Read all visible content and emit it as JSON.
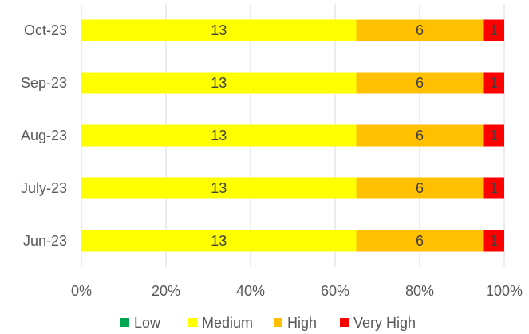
{
  "chart_data": {
    "type": "bar",
    "orientation": "horizontal",
    "stacked": true,
    "percent_stacked": true,
    "title": "",
    "xlabel": "",
    "ylabel": "",
    "categories": [
      "Oct-23",
      "Sep-23",
      "Aug-23",
      "July-23",
      "Jun-23"
    ],
    "series": [
      {
        "name": "Low",
        "color": "#00a651",
        "values": [
          0,
          0,
          0,
          0,
          0
        ]
      },
      {
        "name": "Medium",
        "color": "#ffff00",
        "values": [
          13,
          13,
          13,
          13,
          13
        ]
      },
      {
        "name": "High",
        "color": "#ffc000",
        "values": [
          6,
          6,
          6,
          6,
          6
        ]
      },
      {
        "name": "Very High",
        "color": "#ff0000",
        "values": [
          1,
          1,
          1,
          1,
          1
        ]
      }
    ],
    "x_ticks": [
      "0%",
      "20%",
      "40%",
      "60%",
      "80%",
      "100%"
    ],
    "xlim": [
      0,
      100
    ],
    "grid": true,
    "legend_position": "bottom",
    "data_labels": true
  }
}
